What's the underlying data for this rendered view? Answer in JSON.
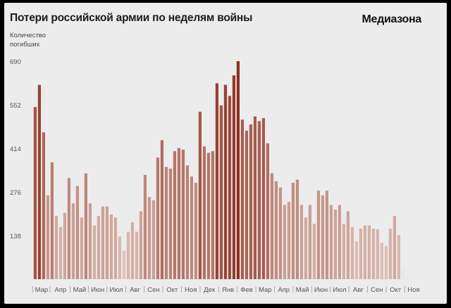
{
  "header": {
    "title": "Потери российской армии по неделям войны",
    "brand": "Медиазона",
    "ylabel_line1": "Количество",
    "ylabel_line2": "погибших"
  },
  "colors": {
    "light": "#e0c3b9",
    "dark": "#8f2f1f",
    "latest": "#f1e4de",
    "background": "#ececec"
  },
  "chart_data": {
    "type": "bar",
    "title": "Потери российской армии по неделям войны",
    "ylabel": "Количество погибших",
    "ylim": [
      0,
      690
    ],
    "yticks": [
      138,
      276,
      414,
      552,
      690
    ],
    "grid": false,
    "x_month_labels": [
      "Мар",
      "Апр",
      "Май",
      "Июн",
      "Июл",
      "Авг",
      "Сен",
      "Окт",
      "Ноя",
      "Дек",
      "Янв",
      "Фев",
      "Мар",
      "Апр",
      "Май",
      "Июн",
      "Июл",
      "Авг",
      "Сен",
      "Окт",
      "Ноя"
    ],
    "x_month_label_positions": [
      1.5,
      6.0,
      10.5,
      14.8,
      19.2,
      23.6,
      28.0,
      32.4,
      36.8,
      41.2,
      45.6,
      50.0,
      54.4,
      58.8,
      63.2,
      67.6,
      72.0,
      76.4,
      80.8,
      85.2,
      89.5
    ],
    "x_tick_separators": [
      -0.6,
      3.5,
      8.3,
      12.6,
      17.0,
      21.4,
      25.8,
      30.2,
      34.6,
      39.0,
      43.4,
      47.8,
      52.2,
      56.6,
      61.0,
      65.4,
      69.8,
      74.2,
      78.6,
      83.0,
      87.4
    ],
    "values": [
      545,
      615,
      465,
      265,
      370,
      200,
      165,
      210,
      320,
      240,
      295,
      195,
      335,
      240,
      170,
      200,
      230,
      230,
      205,
      195,
      135,
      90,
      150,
      180,
      150,
      215,
      330,
      260,
      250,
      385,
      440,
      355,
      350,
      405,
      415,
      410,
      360,
      325,
      305,
      530,
      420,
      400,
      405,
      620,
      550,
      615,
      580,
      645,
      690,
      505,
      470,
      490,
      515,
      500,
      510,
      430,
      335,
      310,
      290,
      235,
      245,
      305,
      315,
      235,
      195,
      235,
      175,
      280,
      265,
      280,
      235,
      220,
      235,
      175,
      215,
      165,
      120,
      160,
      170,
      170,
      160,
      158,
      115,
      105,
      160,
      200,
      140,
      40,
      5
    ]
  }
}
